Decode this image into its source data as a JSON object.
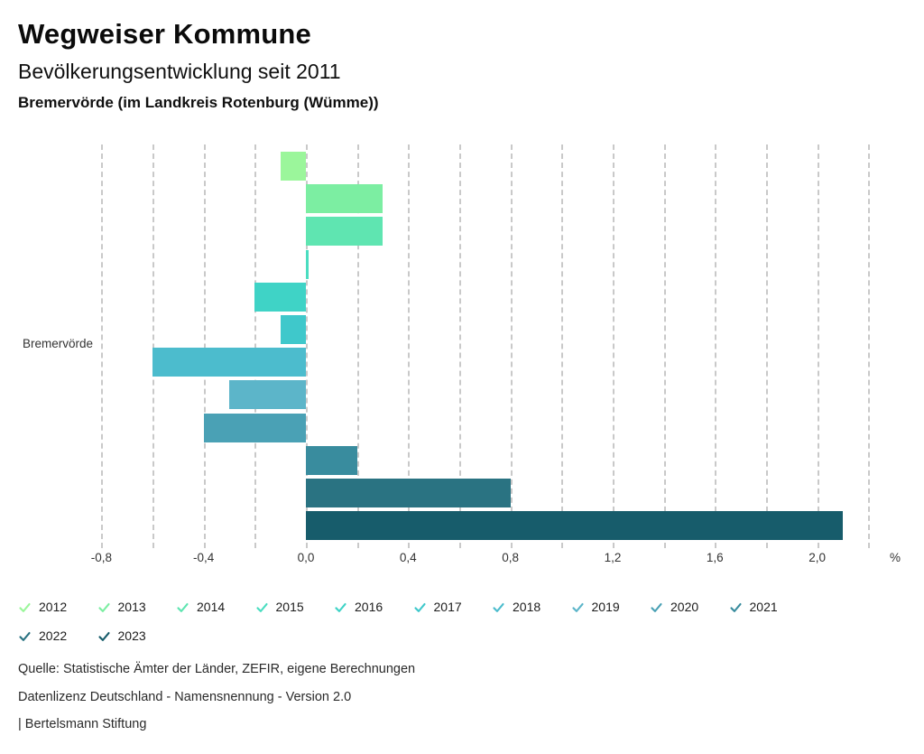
{
  "header": {
    "title": "Wegweiser Kommune",
    "subtitle": "Bevölkerungsentwicklung seit 2011",
    "region": "Bremervörde (im Landkreis Rotenburg (Wümme))"
  },
  "chart_data": {
    "type": "bar",
    "orientation": "horizontal",
    "title": "Bevölkerungsentwicklung seit 2011",
    "group_label": "Bremervörde",
    "unit": "%",
    "categories": [
      "2012",
      "2013",
      "2014",
      "2015",
      "2016",
      "2017",
      "2018",
      "2019",
      "2020",
      "2021",
      "2022",
      "2023"
    ],
    "values": [
      -0.1,
      0.3,
      0.3,
      0.0,
      -0.2,
      -0.1,
      -0.6,
      -0.3,
      -0.4,
      0.2,
      0.8,
      2.1
    ],
    "colors": [
      "#9BF69B",
      "#7CEEA2",
      "#5FE5B1",
      "#4ADDC0",
      "#3FD3C6",
      "#3FC8CB",
      "#4CBCCD",
      "#5CB5C9",
      "#4AA1B5",
      "#398C9E",
      "#2A7382",
      "#175C6B"
    ],
    "xlim": [
      -0.9,
      2.3
    ],
    "grid": true,
    "gridline_step": 0.2,
    "gridline_range": [
      -0.8,
      2.2
    ],
    "xticks": {
      "values": [
        -0.8,
        -0.4,
        0.0,
        0.4,
        0.8,
        1.2,
        1.6,
        2.0
      ],
      "labels": [
        "-0,8",
        "-0,4",
        "0,0",
        "0,4",
        "0,8",
        "1,2",
        "1,6",
        "2,0"
      ]
    },
    "legend_position": "bottom"
  },
  "footer": {
    "source": "Quelle: Statistische Ämter der Länder, ZEFIR, eigene Berechnungen",
    "license": "Datenlizenz Deutschland - Namensnennung - Version 2.0",
    "brand": "| Bertelsmann Stiftung"
  }
}
